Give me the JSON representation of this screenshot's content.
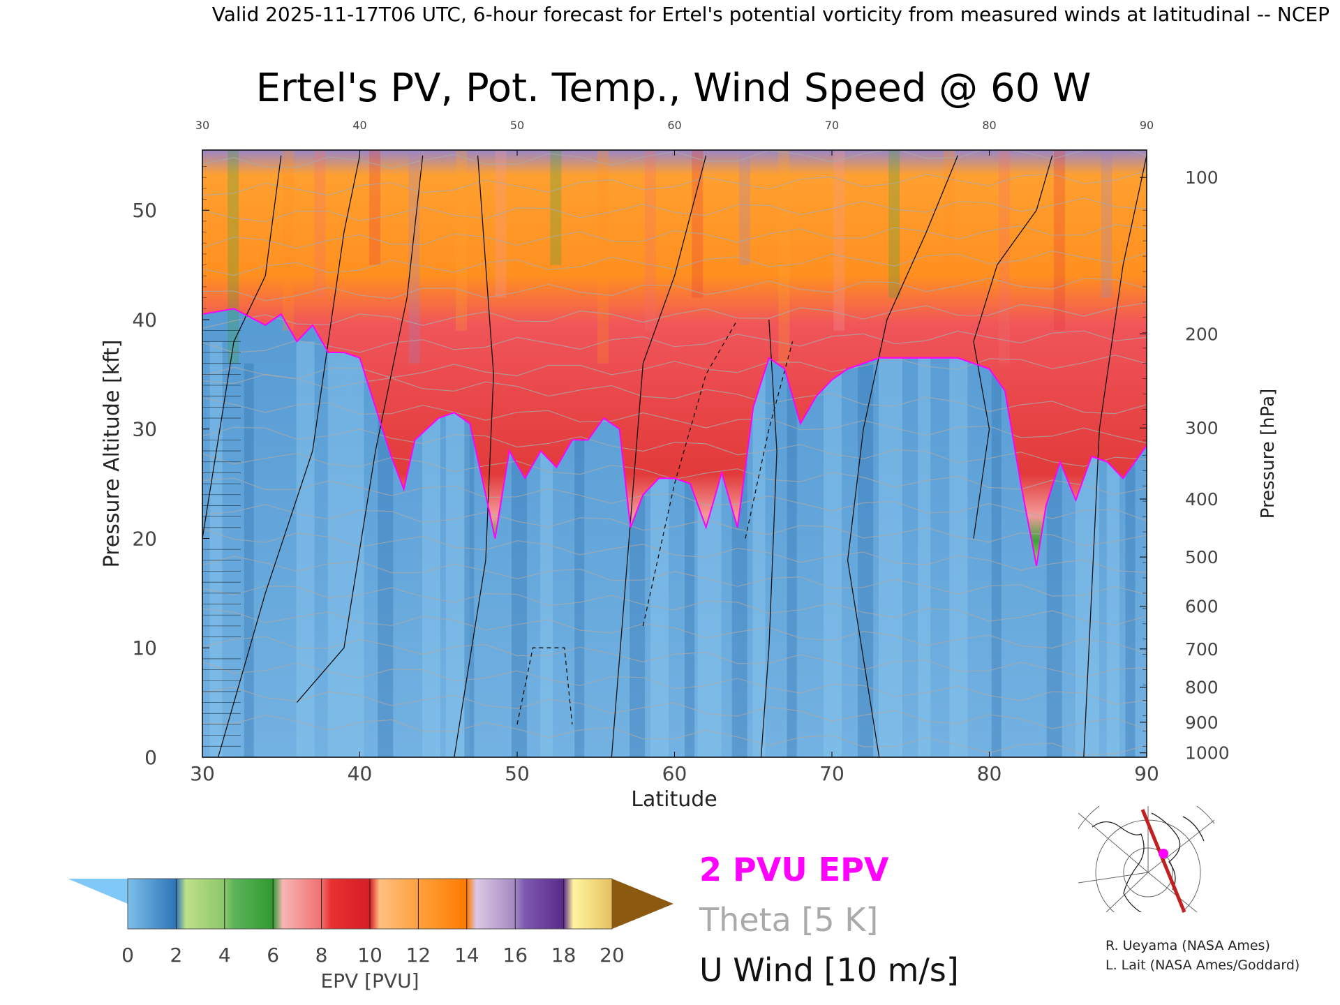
{
  "header_line": "Valid 2025-11-17T06 UTC, 6-hour forecast for Ertel's potential vorticity from measured winds at latitudinal -- NCEP",
  "title": "Ertel's PV, Pot. Temp., Wind Speed @ 60 W",
  "legend": {
    "pvu": "2 PVU EPV",
    "theta": "Theta [5 K]",
    "uwind": "U Wind [10 m/s]",
    "pvu_color": "#ff00ff",
    "theta_color": "#aaaaaa"
  },
  "credits": [
    "R. Ueyama (NASA Ames)",
    "L. Lait (NASA Ames/Goddard)"
  ],
  "colorbar": {
    "label": "EPV [PVU]",
    "ticks": [
      "0",
      "2",
      "4",
      "6",
      "8",
      "10",
      "12",
      "14",
      "16",
      "18",
      "20"
    ],
    "colors": [
      "#4a8fd0",
      "#b7d87f",
      "#39a035",
      "#f4a0a0",
      "#e8222a",
      "#ffb060",
      "#ff8c10",
      "#c8b2d8",
      "#6e3fa0",
      "#fff08a"
    ],
    "under_color": "#80c8f8",
    "over_color": "#8b5a10"
  },
  "chart_data": {
    "type": "heatmap",
    "xlabel": "Latitude",
    "ylabel_left": "Pressure Altitude [kft]",
    "ylabel_right": "Pressure [hPa]",
    "xlim": [
      30,
      90
    ],
    "ylim_kft": [
      0,
      55.5
    ],
    "x_ticks": [
      "30",
      "40",
      "50",
      "60",
      "70",
      "80",
      "90"
    ],
    "y_ticks_left": [
      "0",
      "10",
      "20",
      "30",
      "40",
      "50"
    ],
    "y_ticks_right": [
      {
        "label": "100",
        "kft": 53.0
      },
      {
        "label": "200",
        "kft": 38.7
      },
      {
        "label": "300",
        "kft": 30.1
      },
      {
        "label": "400",
        "kft": 23.6
      },
      {
        "label": "500",
        "kft": 18.3
      },
      {
        "label": "600",
        "kft": 13.8
      },
      {
        "label": "700",
        "kft": 9.9
      },
      {
        "label": "800",
        "kft": 6.4
      },
      {
        "label": "900",
        "kft": 3.2
      },
      {
        "label": "1000",
        "kft": 0.4
      }
    ],
    "tropopause_2pvu": {
      "name": "2 PVU EPV",
      "lat": [
        30,
        32,
        34,
        35,
        36,
        37,
        38,
        39,
        40,
        41,
        42,
        42.8,
        43.5,
        45,
        46,
        47,
        48,
        48.6,
        49.5,
        50.5,
        51.5,
        52.5,
        53.5,
        54.5,
        55.5,
        56.5,
        57.2,
        58,
        59,
        60,
        61,
        62,
        63,
        64,
        65,
        66,
        67,
        68,
        69,
        70,
        71,
        72,
        73,
        74,
        75,
        76,
        77,
        78,
        79,
        80,
        81,
        82,
        83,
        83.6,
        84.5,
        85.5,
        86.5,
        87.5,
        88.5,
        90
      ],
      "kft": [
        40.5,
        41,
        39.5,
        40.5,
        38,
        39.5,
        37,
        37,
        36.5,
        32,
        27.5,
        24.5,
        29,
        31,
        31.5,
        30.5,
        24,
        20,
        28,
        25.5,
        28,
        26.5,
        29,
        29,
        31,
        30,
        21,
        24,
        25.5,
        25.5,
        25,
        21,
        26,
        21,
        32,
        36.5,
        35.5,
        30.5,
        33,
        34.5,
        35.5,
        36,
        36.5,
        36.5,
        36.5,
        36.5,
        36.5,
        36.5,
        36,
        35.5,
        33.5,
        25,
        17.5,
        23,
        27,
        23.5,
        27.5,
        27,
        25.5,
        28.5
      ]
    },
    "u_wind_contours_ms": [
      "-10",
      "0",
      "10",
      "30",
      "50"
    ],
    "theta_contours_K": [
      "300",
      "320",
      "330",
      "340",
      "360",
      "370",
      "380",
      "390",
      "400",
      "420"
    ],
    "grid": false
  }
}
